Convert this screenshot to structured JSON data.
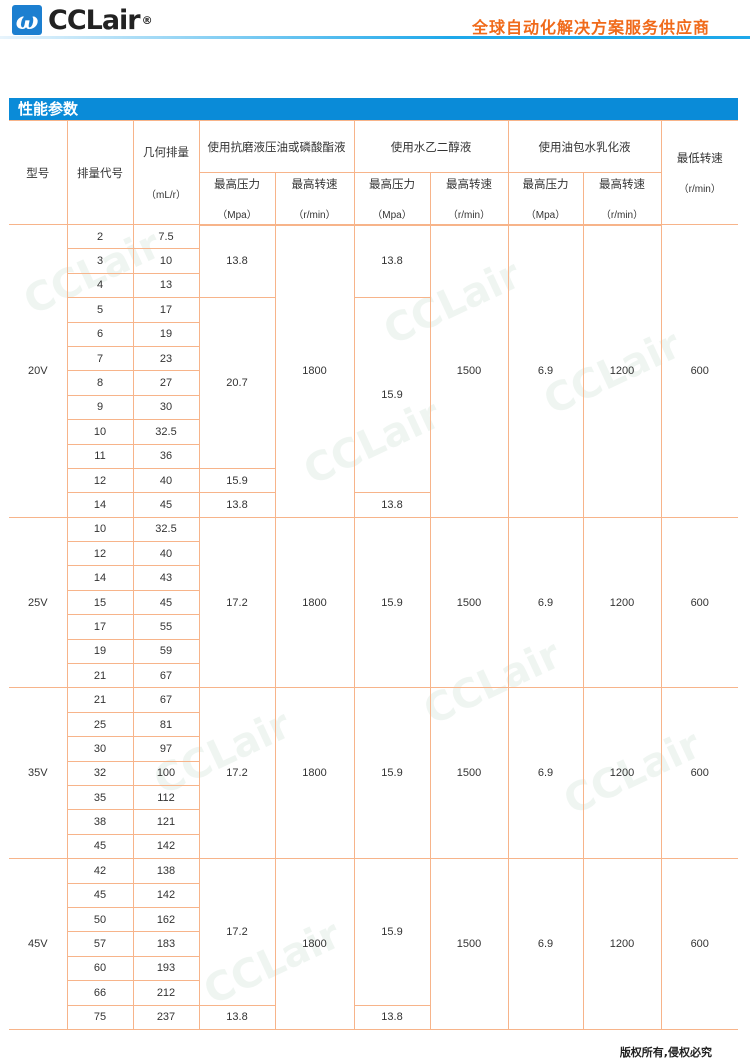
{
  "header": {
    "logo_text": "CCLair",
    "logo_reg": "®",
    "slogan": "全球自动化解决方案服务供应商"
  },
  "section_title": "性能参数",
  "colors": {
    "accent": "#0a8bd8",
    "slogan": "#f06a1a",
    "grid": "#f7b48a"
  },
  "table": {
    "headers": {
      "model": "型号",
      "code": "排量代号",
      "displacement": "几何排量",
      "displacement_unit": "（mL/r）",
      "fluid_a": "使用抗磨液压油或磷酸酯液",
      "fluid_b": "使用水乙二醇液",
      "fluid_c": "使用油包水乳化液",
      "max_pressure": "最高压力",
      "max_speed": "最高转速",
      "pressure_unit": "（Mpa）",
      "speed_unit": "（r/min）",
      "min_speed": "最低转速",
      "min_speed_unit": "（r/min）"
    },
    "series": [
      {
        "model": "20V",
        "rows": [
          [
            "2",
            "7.5"
          ],
          [
            "3",
            "10"
          ],
          [
            "4",
            "13"
          ],
          [
            "5",
            "17"
          ],
          [
            "6",
            "19"
          ],
          [
            "7",
            "23"
          ],
          [
            "8",
            "27"
          ],
          [
            "9",
            "30"
          ],
          [
            "10",
            "32.5"
          ],
          [
            "11",
            "36"
          ],
          [
            "12",
            "40"
          ],
          [
            "14",
            "45"
          ]
        ],
        "pressure_a": [
          {
            "value": "13.8",
            "rows": 3
          },
          {
            "value": "20.7",
            "rows": 7
          },
          {
            "value": "15.9",
            "rows": 1
          },
          {
            "value": "13.8",
            "rows": 1
          }
        ],
        "speed_a": "1800",
        "pressure_b": [
          {
            "value": "13.8",
            "rows": 3
          },
          {
            "value": "15.9",
            "rows": 8
          },
          {
            "value": "13.8",
            "rows": 1
          }
        ],
        "speed_b": "1500",
        "pressure_c": "6.9",
        "speed_c": "1200",
        "min_speed": "600"
      },
      {
        "model": "25V",
        "rows": [
          [
            "10",
            "32.5"
          ],
          [
            "12",
            "40"
          ],
          [
            "14",
            "43"
          ],
          [
            "15",
            "45"
          ],
          [
            "17",
            "55"
          ],
          [
            "19",
            "59"
          ],
          [
            "21",
            "67"
          ]
        ],
        "pressure_a": [
          {
            "value": "17.2",
            "rows": 7
          }
        ],
        "speed_a": "1800",
        "pressure_b": [
          {
            "value": "15.9",
            "rows": 7
          }
        ],
        "speed_b": "1500",
        "pressure_c": "6.9",
        "speed_c": "1200",
        "min_speed": "600"
      },
      {
        "model": "35V",
        "rows": [
          [
            "21",
            "67"
          ],
          [
            "25",
            "81"
          ],
          [
            "30",
            "97"
          ],
          [
            "32",
            "100"
          ],
          [
            "35",
            "112"
          ],
          [
            "38",
            "121"
          ],
          [
            "45",
            "142"
          ]
        ],
        "pressure_a": [
          {
            "value": "17.2",
            "rows": 7
          }
        ],
        "speed_a": "1800",
        "pressure_b": [
          {
            "value": "15.9",
            "rows": 7
          }
        ],
        "speed_b": "1500",
        "pressure_c": "6.9",
        "speed_c": "1200",
        "min_speed": "600"
      },
      {
        "model": "45V",
        "rows": [
          [
            "42",
            "138"
          ],
          [
            "45",
            "142"
          ],
          [
            "50",
            "162"
          ],
          [
            "57",
            "183"
          ],
          [
            "60",
            "193"
          ],
          [
            "66",
            "212"
          ],
          [
            "75",
            "237"
          ]
        ],
        "pressure_a": [
          {
            "value": "17.2",
            "rows": 6
          },
          {
            "value": "13.8",
            "rows": 1
          }
        ],
        "speed_a": "1800",
        "pressure_b": [
          {
            "value": "15.9",
            "rows": 6
          },
          {
            "value": "13.8",
            "rows": 1
          }
        ],
        "speed_b": "1500",
        "pressure_c": "6.9",
        "speed_c": "1200",
        "min_speed": "600"
      }
    ]
  },
  "footer": "版权所有,侵权必究"
}
